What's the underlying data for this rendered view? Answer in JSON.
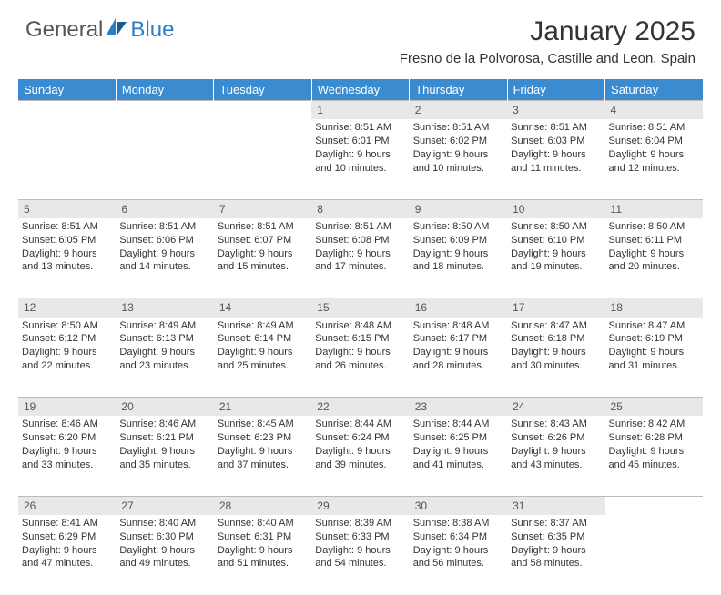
{
  "logo": {
    "part1": "General",
    "part2": "Blue"
  },
  "title": {
    "month": "January 2025",
    "location": "Fresno de la Polvorosa, Castille and Leon, Spain"
  },
  "colors": {
    "header_bg": "#3b8bd0",
    "daynum_bg": "#e8e8e8",
    "text": "#333333"
  },
  "weekdays": [
    "Sunday",
    "Monday",
    "Tuesday",
    "Wednesday",
    "Thursday",
    "Friday",
    "Saturday"
  ],
  "weeks": [
    {
      "nums": [
        "",
        "",
        "",
        "1",
        "2",
        "3",
        "4"
      ],
      "cells": [
        null,
        null,
        null,
        {
          "sunrise": "Sunrise: 8:51 AM",
          "sunset": "Sunset: 6:01 PM",
          "day1": "Daylight: 9 hours",
          "day2": "and 10 minutes."
        },
        {
          "sunrise": "Sunrise: 8:51 AM",
          "sunset": "Sunset: 6:02 PM",
          "day1": "Daylight: 9 hours",
          "day2": "and 10 minutes."
        },
        {
          "sunrise": "Sunrise: 8:51 AM",
          "sunset": "Sunset: 6:03 PM",
          "day1": "Daylight: 9 hours",
          "day2": "and 11 minutes."
        },
        {
          "sunrise": "Sunrise: 8:51 AM",
          "sunset": "Sunset: 6:04 PM",
          "day1": "Daylight: 9 hours",
          "day2": "and 12 minutes."
        }
      ]
    },
    {
      "nums": [
        "5",
        "6",
        "7",
        "8",
        "9",
        "10",
        "11"
      ],
      "cells": [
        {
          "sunrise": "Sunrise: 8:51 AM",
          "sunset": "Sunset: 6:05 PM",
          "day1": "Daylight: 9 hours",
          "day2": "and 13 minutes."
        },
        {
          "sunrise": "Sunrise: 8:51 AM",
          "sunset": "Sunset: 6:06 PM",
          "day1": "Daylight: 9 hours",
          "day2": "and 14 minutes."
        },
        {
          "sunrise": "Sunrise: 8:51 AM",
          "sunset": "Sunset: 6:07 PM",
          "day1": "Daylight: 9 hours",
          "day2": "and 15 minutes."
        },
        {
          "sunrise": "Sunrise: 8:51 AM",
          "sunset": "Sunset: 6:08 PM",
          "day1": "Daylight: 9 hours",
          "day2": "and 17 minutes."
        },
        {
          "sunrise": "Sunrise: 8:50 AM",
          "sunset": "Sunset: 6:09 PM",
          "day1": "Daylight: 9 hours",
          "day2": "and 18 minutes."
        },
        {
          "sunrise": "Sunrise: 8:50 AM",
          "sunset": "Sunset: 6:10 PM",
          "day1": "Daylight: 9 hours",
          "day2": "and 19 minutes."
        },
        {
          "sunrise": "Sunrise: 8:50 AM",
          "sunset": "Sunset: 6:11 PM",
          "day1": "Daylight: 9 hours",
          "day2": "and 20 minutes."
        }
      ]
    },
    {
      "nums": [
        "12",
        "13",
        "14",
        "15",
        "16",
        "17",
        "18"
      ],
      "cells": [
        {
          "sunrise": "Sunrise: 8:50 AM",
          "sunset": "Sunset: 6:12 PM",
          "day1": "Daylight: 9 hours",
          "day2": "and 22 minutes."
        },
        {
          "sunrise": "Sunrise: 8:49 AM",
          "sunset": "Sunset: 6:13 PM",
          "day1": "Daylight: 9 hours",
          "day2": "and 23 minutes."
        },
        {
          "sunrise": "Sunrise: 8:49 AM",
          "sunset": "Sunset: 6:14 PM",
          "day1": "Daylight: 9 hours",
          "day2": "and 25 minutes."
        },
        {
          "sunrise": "Sunrise: 8:48 AM",
          "sunset": "Sunset: 6:15 PM",
          "day1": "Daylight: 9 hours",
          "day2": "and 26 minutes."
        },
        {
          "sunrise": "Sunrise: 8:48 AM",
          "sunset": "Sunset: 6:17 PM",
          "day1": "Daylight: 9 hours",
          "day2": "and 28 minutes."
        },
        {
          "sunrise": "Sunrise: 8:47 AM",
          "sunset": "Sunset: 6:18 PM",
          "day1": "Daylight: 9 hours",
          "day2": "and 30 minutes."
        },
        {
          "sunrise": "Sunrise: 8:47 AM",
          "sunset": "Sunset: 6:19 PM",
          "day1": "Daylight: 9 hours",
          "day2": "and 31 minutes."
        }
      ]
    },
    {
      "nums": [
        "19",
        "20",
        "21",
        "22",
        "23",
        "24",
        "25"
      ],
      "cells": [
        {
          "sunrise": "Sunrise: 8:46 AM",
          "sunset": "Sunset: 6:20 PM",
          "day1": "Daylight: 9 hours",
          "day2": "and 33 minutes."
        },
        {
          "sunrise": "Sunrise: 8:46 AM",
          "sunset": "Sunset: 6:21 PM",
          "day1": "Daylight: 9 hours",
          "day2": "and 35 minutes."
        },
        {
          "sunrise": "Sunrise: 8:45 AM",
          "sunset": "Sunset: 6:23 PM",
          "day1": "Daylight: 9 hours",
          "day2": "and 37 minutes."
        },
        {
          "sunrise": "Sunrise: 8:44 AM",
          "sunset": "Sunset: 6:24 PM",
          "day1": "Daylight: 9 hours",
          "day2": "and 39 minutes."
        },
        {
          "sunrise": "Sunrise: 8:44 AM",
          "sunset": "Sunset: 6:25 PM",
          "day1": "Daylight: 9 hours",
          "day2": "and 41 minutes."
        },
        {
          "sunrise": "Sunrise: 8:43 AM",
          "sunset": "Sunset: 6:26 PM",
          "day1": "Daylight: 9 hours",
          "day2": "and 43 minutes."
        },
        {
          "sunrise": "Sunrise: 8:42 AM",
          "sunset": "Sunset: 6:28 PM",
          "day1": "Daylight: 9 hours",
          "day2": "and 45 minutes."
        }
      ]
    },
    {
      "nums": [
        "26",
        "27",
        "28",
        "29",
        "30",
        "31",
        ""
      ],
      "cells": [
        {
          "sunrise": "Sunrise: 8:41 AM",
          "sunset": "Sunset: 6:29 PM",
          "day1": "Daylight: 9 hours",
          "day2": "and 47 minutes."
        },
        {
          "sunrise": "Sunrise: 8:40 AM",
          "sunset": "Sunset: 6:30 PM",
          "day1": "Daylight: 9 hours",
          "day2": "and 49 minutes."
        },
        {
          "sunrise": "Sunrise: 8:40 AM",
          "sunset": "Sunset: 6:31 PM",
          "day1": "Daylight: 9 hours",
          "day2": "and 51 minutes."
        },
        {
          "sunrise": "Sunrise: 8:39 AM",
          "sunset": "Sunset: 6:33 PM",
          "day1": "Daylight: 9 hours",
          "day2": "and 54 minutes."
        },
        {
          "sunrise": "Sunrise: 8:38 AM",
          "sunset": "Sunset: 6:34 PM",
          "day1": "Daylight: 9 hours",
          "day2": "and 56 minutes."
        },
        {
          "sunrise": "Sunrise: 8:37 AM",
          "sunset": "Sunset: 6:35 PM",
          "day1": "Daylight: 9 hours",
          "day2": "and 58 minutes."
        },
        null
      ]
    }
  ]
}
